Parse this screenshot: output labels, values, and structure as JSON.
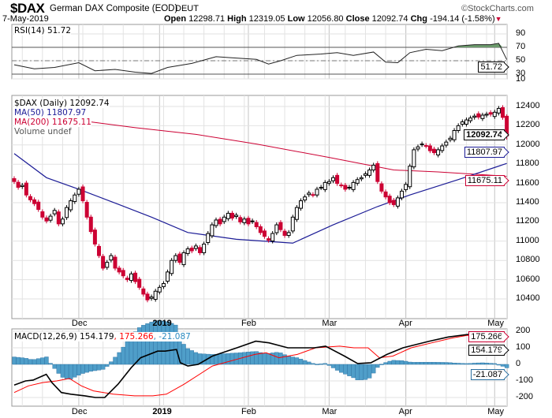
{
  "header": {
    "symbol": "$DAX",
    "name": "German DAX Composite (EOD)",
    "exchange": "DEUT",
    "watermark": "©StockCharts.com",
    "date": "7-May-2019",
    "open_label": "Open",
    "open": "12298.71",
    "high_label": "High",
    "high": "12319.05",
    "low_label": "Low",
    "low": "12056.80",
    "close_label": "Close",
    "close": "12092.74",
    "chg_label": "Chg",
    "chg": "-194.14 (-1.58%)",
    "down_arrow": "▼"
  },
  "colors": {
    "up": "#000000",
    "down": "#cc0033",
    "ma50": "#1c1c96",
    "ma200": "#cc0033",
    "hist": "#4f9ec9",
    "rsi_fill": "#6b9a6b",
    "signal": "#ff0000"
  },
  "chart_data": [
    {
      "type": "line",
      "title": "RSI(14) 51.72",
      "legend": "RSI(14) 51.72",
      "last_value": "51.72",
      "yticks": [
        "90",
        "70",
        "50",
        "30",
        "10"
      ],
      "ylim": [
        10,
        95
      ],
      "levels": [
        70,
        30
      ],
      "points": [
        [
          0,
          44
        ],
        [
          5,
          38
        ],
        [
          10,
          40
        ],
        [
          16,
          47
        ],
        [
          20,
          35
        ],
        [
          25,
          37
        ],
        [
          30,
          33
        ],
        [
          34,
          31
        ],
        [
          38,
          40
        ],
        [
          44,
          46
        ],
        [
          50,
          56
        ],
        [
          55,
          54
        ],
        [
          60,
          52
        ],
        [
          63,
          45
        ],
        [
          66,
          50
        ],
        [
          70,
          58
        ],
        [
          76,
          60
        ],
        [
          80,
          62
        ],
        [
          84,
          58
        ],
        [
          89,
          63
        ],
        [
          92,
          48
        ],
        [
          95,
          47
        ],
        [
          98,
          62
        ],
        [
          102,
          67
        ],
        [
          106,
          65
        ],
        [
          110,
          72
        ],
        [
          114,
          74
        ],
        [
          118,
          74
        ],
        [
          120,
          76
        ],
        [
          122,
          51.72
        ]
      ]
    },
    {
      "type": "candlestick",
      "title": "$DAX (Daily) 12092.74",
      "legend": [
        "$DAX (Daily) 12092.74",
        "MA(50) 11807.97",
        "MA(200) 11675.11",
        "Volume undef"
      ],
      "yticks": [
        "12400",
        "12200",
        "12000",
        "11800",
        "11600",
        "11400",
        "11200",
        "11000",
        "10800",
        "10600",
        "10400"
      ],
      "xticks": [
        {
          "label": "Dec",
          "i": 16
        },
        {
          "label": "2019",
          "i": 36,
          "bold": true
        },
        {
          "label": "Feb",
          "i": 58
        },
        {
          "label": "Mar",
          "i": 78
        },
        {
          "label": "Apr",
          "i": 97
        },
        {
          "label": "May",
          "i": 119
        }
      ],
      "last_open": 12298.71,
      "last_high": 12319.05,
      "last_low": 12056.8,
      "closes": [
        11620,
        11560,
        11580,
        11480,
        11430,
        11390,
        11330,
        11250,
        11210,
        11260,
        11320,
        11180,
        11230,
        11350,
        11420,
        11480,
        11540,
        11420,
        11250,
        11100,
        10970,
        10850,
        10720,
        10780,
        10850,
        10720,
        10680,
        10640,
        10600,
        10660,
        10580,
        10520,
        10450,
        10390,
        10420,
        10480,
        10520,
        10560,
        10680,
        10800,
        10850,
        10780,
        10880,
        10920,
        10900,
        10950,
        10880,
        10970,
        11080,
        11170,
        11220,
        11180,
        11250,
        11290,
        11240,
        11270,
        11200,
        11230,
        11180,
        11210,
        11150,
        11090,
        11050,
        11010,
        11080,
        11170,
        11120,
        11060,
        11090,
        11250,
        11350,
        11420,
        11460,
        11500,
        11480,
        11540,
        11560,
        11610,
        11620,
        11660,
        11600,
        11580,
        11540,
        11560,
        11610,
        11640,
        11660,
        11700,
        11740,
        11790,
        11620,
        11520,
        11460,
        11400,
        11380,
        11450,
        11520,
        11590,
        11780,
        11950,
        11980,
        12010,
        11990,
        11940,
        11920,
        11950,
        11990,
        12030,
        12070,
        12150,
        12200,
        12240,
        12260,
        12280,
        12300,
        12290,
        12310,
        12320,
        12320,
        12340,
        12380,
        12286.88,
        12092.74
      ],
      "ma50": [
        [
          0,
          11910
        ],
        [
          8,
          11660
        ],
        [
          16,
          11540
        ],
        [
          26,
          11380
        ],
        [
          34,
          11250
        ],
        [
          43,
          11090
        ],
        [
          55,
          11020
        ],
        [
          69,
          10980
        ],
        [
          79,
          11170
        ],
        [
          90,
          11360
        ],
        [
          98,
          11480
        ],
        [
          110,
          11640
        ],
        [
          122,
          11807.97
        ]
      ],
      "ma200": [
        [
          17,
          12250
        ],
        [
          30,
          12180
        ],
        [
          45,
          12110
        ],
        [
          60,
          12010
        ],
        [
          78,
          11870
        ],
        [
          94,
          11740
        ],
        [
          105,
          11720
        ],
        [
          122,
          11675.11
        ]
      ],
      "tags": {
        "close": "12092.74",
        "ma50": "11807.97",
        "ma200": "11675.11"
      }
    },
    {
      "type": "line+bar",
      "title": "MACD(12,26,9)",
      "legend_main": "MACD(12,26,9) 154.179",
      "legend_signal": ", 175.266",
      "legend_hist": ", -21.087",
      "tags": {
        "macd": "154.179",
        "signal": "175.266",
        "hist": "-21.087"
      },
      "yticks": [
        "200",
        "100",
        "0",
        "-100",
        "-200"
      ],
      "macd": [
        [
          0,
          -125
        ],
        [
          12,
          -100
        ],
        [
          20,
          -95
        ],
        [
          28,
          -75
        ],
        [
          34,
          -60
        ],
        [
          40,
          -110
        ],
        [
          50,
          -170
        ],
        [
          60,
          -180
        ],
        [
          75,
          -190
        ],
        [
          86,
          -200
        ],
        [
          96,
          -200
        ],
        [
          110,
          -120
        ],
        [
          124,
          -20
        ],
        [
          134,
          40
        ],
        [
          152,
          80
        ],
        [
          160,
          80
        ],
        [
          172,
          90
        ],
        [
          176,
          10
        ],
        [
          184,
          -10
        ],
        [
          195,
          0
        ],
        [
          210,
          50
        ],
        [
          236,
          100
        ],
        [
          256,
          140
        ],
        [
          270,
          130
        ],
        [
          290,
          100
        ],
        [
          318,
          100
        ],
        [
          330,
          110
        ],
        [
          350,
          50
        ],
        [
          364,
          5
        ],
        [
          378,
          10
        ],
        [
          395,
          60
        ],
        [
          412,
          100
        ],
        [
          440,
          140
        ],
        [
          460,
          165
        ],
        [
          480,
          180
        ],
        [
          495,
          185
        ],
        [
          510,
          180
        ],
        [
          522,
          154.179
        ]
      ],
      "signal": [
        [
          0,
          -170
        ],
        [
          20,
          -130
        ],
        [
          40,
          -110
        ],
        [
          60,
          -100
        ],
        [
          78,
          -85
        ],
        [
          95,
          -130
        ],
        [
          112,
          -160
        ],
        [
          140,
          -180
        ],
        [
          170,
          -190
        ],
        [
          196,
          -190
        ],
        [
          215,
          -180
        ],
        [
          240,
          -120
        ],
        [
          280,
          -10
        ],
        [
          314,
          30
        ],
        [
          340,
          60
        ],
        [
          356,
          70
        ],
        [
          374,
          40
        ],
        [
          400,
          60
        ],
        [
          426,
          100
        ],
        [
          460,
          110
        ],
        [
          480,
          100
        ],
        [
          500,
          100
        ],
        [
          516,
          40
        ],
        [
          535,
          50
        ],
        [
          561,
          100
        ],
        [
          590,
          130
        ],
        [
          620,
          160
        ],
        [
          640,
          175
        ],
        [
          660,
          175
        ],
        [
          680,
          175
        ],
        [
          696,
          175.266
        ]
      ],
      "signal_index_scale": 5.7
    }
  ]
}
